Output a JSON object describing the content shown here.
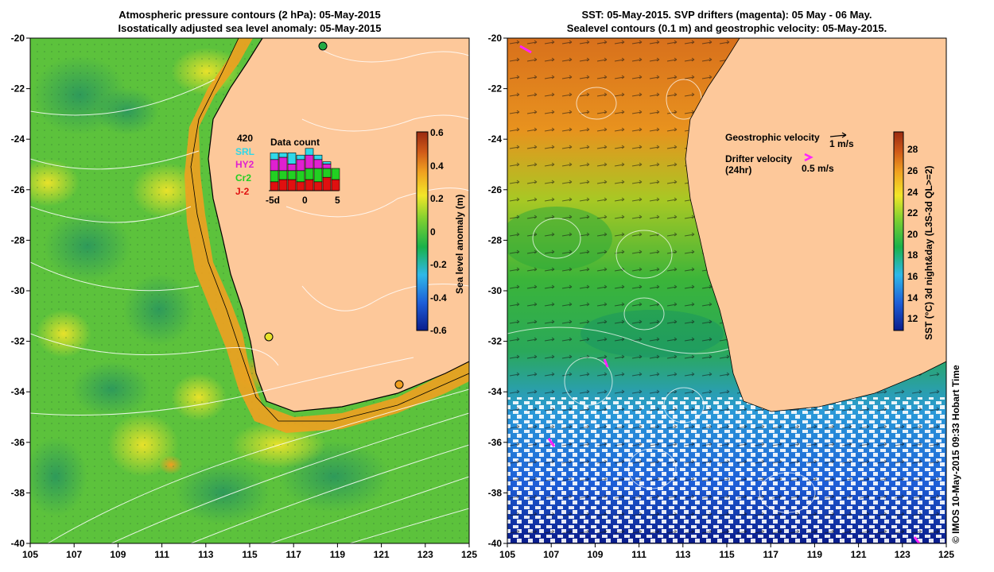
{
  "left_panel": {
    "title_line1": "Atmospheric pressure contours (2 hPa): 05-May-2015",
    "title_line2": "Isostatically adjusted sea level anomaly: 05-May-2015",
    "colorbar": {
      "label": "Sea level anomaly (m)",
      "ticks": [
        "0.6",
        "0.4",
        "0.2",
        "0",
        "-0.2",
        "-0.4",
        "-0.6"
      ],
      "colors": [
        "#0a1c8c",
        "#1e5fd8",
        "#2fb8e8",
        "#19b24a",
        "#7fd030",
        "#f2e628",
        "#f0a020",
        "#d05a18",
        "#9a2a10"
      ]
    },
    "inset": {
      "title": "Data count",
      "ymax": "420",
      "xticks": [
        "-5d",
        "0",
        "5"
      ],
      "legend": [
        {
          "name": "SRL",
          "color": "#2fd8e8"
        },
        {
          "name": "HY2",
          "color": "#e020d0"
        },
        {
          "name": "Cr2",
          "color": "#22d022"
        },
        {
          "name": "J-2",
          "color": "#e01010"
        }
      ],
      "bars": [
        {
          "j2": 0.2,
          "cr2": 0.25,
          "hy2": 0.25,
          "srl": 0.15
        },
        {
          "j2": 0.25,
          "cr2": 0.2,
          "hy2": 0.3,
          "srl": 0.1
        },
        {
          "j2": 0.25,
          "cr2": 0.2,
          "hy2": 0.15,
          "srl": 0.25
        },
        {
          "j2": 0.2,
          "cr2": 0.25,
          "hy2": 0.25,
          "srl": 0.1
        },
        {
          "j2": 0.25,
          "cr2": 0.25,
          "hy2": 0.3,
          "srl": 0.15
        },
        {
          "j2": 0.2,
          "cr2": 0.3,
          "hy2": 0.2,
          "srl": 0.1
        },
        {
          "j2": 0.3,
          "cr2": 0.2,
          "hy2": 0.1,
          "srl": 0.05
        },
        {
          "j2": 0.25,
          "cr2": 0.25,
          "hy2": 0.0,
          "srl": 0.0
        }
      ]
    }
  },
  "right_panel": {
    "title_line1": "SST: 05-May-2015. SVP drifters (magenta): 05 May - 06 May.",
    "title_line2": "Sealevel contours (0.1 m) and geostrophic velocity: 05-May-2015.",
    "geostrophic_label": "Geostrophic velocity",
    "geostrophic_scale": "1 m/s",
    "drifter_label": "Drifter velocity",
    "drifter_sub": "(24hr)",
    "drifter_scale": "0.5 m/s",
    "colorbar": {
      "label": "SST (°C) 3d night&day (L3S-3d QL>=2)",
      "ticks": [
        "28",
        "26",
        "24",
        "22",
        "20",
        "18",
        "16",
        "14",
        "12"
      ],
      "colors": [
        "#0a1c8c",
        "#1e5fd8",
        "#2fb8e8",
        "#19b24a",
        "#7fd030",
        "#f2e628",
        "#f0a020",
        "#d05a18",
        "#9a2a10"
      ]
    }
  },
  "axes": {
    "x_ticks": [
      "105",
      "107",
      "109",
      "111",
      "113",
      "115",
      "117",
      "119",
      "121",
      "123",
      "125"
    ],
    "y_ticks": [
      "-20",
      "-22",
      "-24",
      "-26",
      "-28",
      "-30",
      "-32",
      "-34",
      "-36",
      "-38",
      "-40"
    ]
  },
  "credit": "© IMOS 10-May-2015 09:33 Hobart Time",
  "colors": {
    "land": "#fdc89a",
    "ocean_green": "#5cc23c",
    "coast_orange": "#f0a020"
  }
}
